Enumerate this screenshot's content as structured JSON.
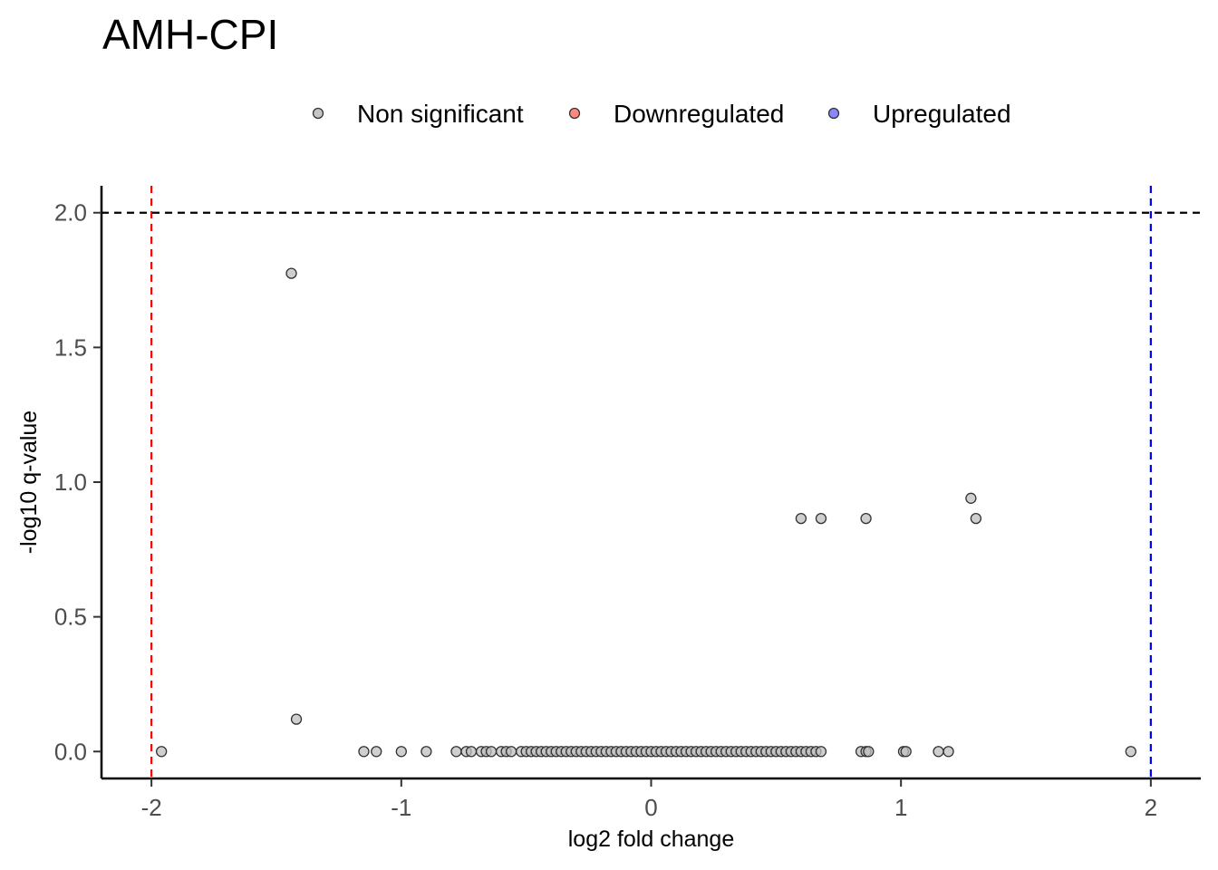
{
  "colors": {
    "non_significant": "#bfbfbf",
    "downregulated": "#ff7b72",
    "upregulated": "#7a7aff",
    "point_stroke": "#333333",
    "down_threshold_line": "#ff0000",
    "up_threshold_line": "#0000ff",
    "q_threshold_line": "#000000"
  },
  "chart_data": {
    "type": "scatter",
    "title": "AMH-CPI",
    "xlabel": "log2 fold change",
    "ylabel": "-log10 q-value",
    "xlim": [
      -2.2,
      2.2
    ],
    "ylim": [
      -0.1,
      2.1
    ],
    "xticks": [
      -2,
      -1,
      0,
      1,
      2
    ],
    "xtick_labels": [
      "-2",
      "-1",
      "0",
      "1",
      "2"
    ],
    "yticks": [
      0,
      0.5,
      1,
      1.5,
      2
    ],
    "ytick_labels": [
      "0.0",
      "0.5",
      "1.0",
      "1.5",
      "2.0"
    ],
    "grid": false,
    "legend_position": "top",
    "legend": [
      {
        "key": "non_significant",
        "label": "Non significant"
      },
      {
        "key": "downregulated",
        "label": "Downregulated"
      },
      {
        "key": "upregulated",
        "label": "Upregulated"
      }
    ],
    "reference_lines": [
      {
        "orientation": "vertical",
        "value": -2,
        "color_key": "down_threshold_line"
      },
      {
        "orientation": "vertical",
        "value": 2,
        "color_key": "up_threshold_line"
      },
      {
        "orientation": "horizontal",
        "value": 2,
        "color_key": "q_threshold_line"
      }
    ],
    "series": [
      {
        "key": "non_significant",
        "points": [
          [
            -1.44,
            1.775
          ],
          [
            -1.42,
            0.12
          ],
          [
            1.28,
            0.94
          ],
          [
            1.3,
            0.865
          ],
          [
            0.6,
            0.865
          ],
          [
            0.68,
            0.865
          ],
          [
            0.86,
            0.865
          ],
          [
            -1.96,
            0
          ],
          [
            -1.15,
            0
          ],
          [
            -1.1,
            0
          ],
          [
            -1.0,
            0
          ],
          [
            -0.9,
            0
          ],
          [
            -0.78,
            0
          ],
          [
            -0.74,
            0
          ],
          [
            -0.72,
            0
          ],
          [
            -0.68,
            0
          ],
          [
            -0.66,
            0
          ],
          [
            -0.64,
            0
          ],
          [
            -0.6,
            0
          ],
          [
            -0.58,
            0
          ],
          [
            -0.56,
            0
          ],
          [
            -0.52,
            0
          ],
          [
            -0.5,
            0
          ],
          [
            -0.48,
            0
          ],
          [
            -0.46,
            0
          ],
          [
            -0.44,
            0
          ],
          [
            -0.42,
            0
          ],
          [
            -0.4,
            0
          ],
          [
            -0.38,
            0
          ],
          [
            -0.36,
            0
          ],
          [
            -0.34,
            0
          ],
          [
            -0.32,
            0
          ],
          [
            -0.3,
            0
          ],
          [
            -0.28,
            0
          ],
          [
            -0.26,
            0
          ],
          [
            -0.24,
            0
          ],
          [
            -0.22,
            0
          ],
          [
            -0.2,
            0
          ],
          [
            -0.18,
            0
          ],
          [
            -0.16,
            0
          ],
          [
            -0.14,
            0
          ],
          [
            -0.12,
            0
          ],
          [
            -0.1,
            0
          ],
          [
            -0.08,
            0
          ],
          [
            -0.06,
            0
          ],
          [
            -0.04,
            0
          ],
          [
            -0.02,
            0
          ],
          [
            0.0,
            0
          ],
          [
            0.02,
            0
          ],
          [
            0.04,
            0
          ],
          [
            0.06,
            0
          ],
          [
            0.08,
            0
          ],
          [
            0.1,
            0
          ],
          [
            0.12,
            0
          ],
          [
            0.14,
            0
          ],
          [
            0.16,
            0
          ],
          [
            0.18,
            0
          ],
          [
            0.2,
            0
          ],
          [
            0.22,
            0
          ],
          [
            0.24,
            0
          ],
          [
            0.26,
            0
          ],
          [
            0.28,
            0
          ],
          [
            0.3,
            0
          ],
          [
            0.32,
            0
          ],
          [
            0.34,
            0
          ],
          [
            0.36,
            0
          ],
          [
            0.38,
            0
          ],
          [
            0.4,
            0
          ],
          [
            0.42,
            0
          ],
          [
            0.44,
            0
          ],
          [
            0.46,
            0
          ],
          [
            0.48,
            0
          ],
          [
            0.5,
            0
          ],
          [
            0.52,
            0
          ],
          [
            0.54,
            0
          ],
          [
            0.56,
            0
          ],
          [
            0.58,
            0
          ],
          [
            0.6,
            0
          ],
          [
            0.62,
            0
          ],
          [
            0.64,
            0
          ],
          [
            0.66,
            0
          ],
          [
            0.68,
            0
          ],
          [
            0.84,
            0
          ],
          [
            0.86,
            0
          ],
          [
            0.87,
            0
          ],
          [
            1.01,
            0
          ],
          [
            1.02,
            0
          ],
          [
            1.15,
            0
          ],
          [
            1.19,
            0
          ],
          [
            1.92,
            0
          ]
        ]
      },
      {
        "key": "downregulated",
        "points": []
      },
      {
        "key": "upregulated",
        "points": []
      }
    ]
  }
}
